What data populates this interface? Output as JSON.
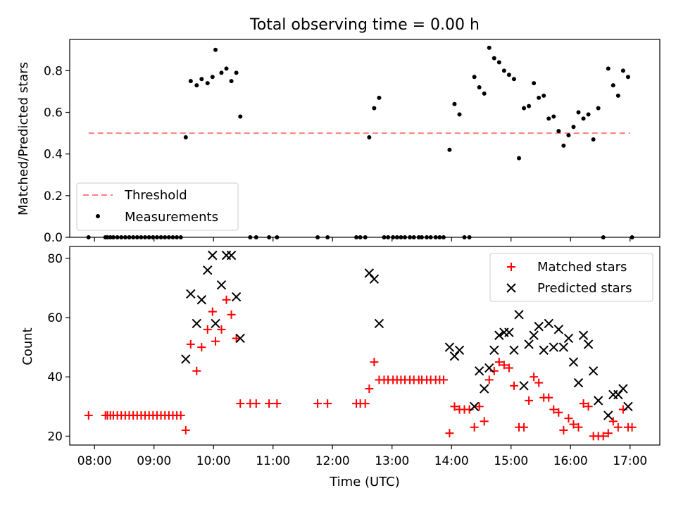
{
  "title": "Total observing time = 0.00 h",
  "chart_data": [
    {
      "type": "scatter",
      "ylabel": "Matched/Predicted stars",
      "xlim": [
        "07:35",
        "17:30"
      ],
      "ylim": [
        0,
        0.95
      ],
      "yticks": [
        0.0,
        0.2,
        0.4,
        0.6,
        0.8
      ],
      "ytick_labels": [
        "0.0",
        "0.2",
        "0.4",
        "0.6",
        "0.8"
      ],
      "legend_position": "lower-left",
      "threshold": {
        "name": "Threshold",
        "value": 0.5,
        "x_range": [
          "07:54",
          "17:00"
        ],
        "color": "#ff7f7f"
      },
      "series": [
        {
          "name": "Measurements",
          "color": "#000000",
          "points": [
            [
              "07:54",
              0.0
            ],
            [
              "08:11",
              0.0
            ],
            [
              "08:13",
              0.0
            ],
            [
              "08:16",
              0.0
            ],
            [
              "08:19",
              0.0
            ],
            [
              "08:23",
              0.0
            ],
            [
              "08:27",
              0.0
            ],
            [
              "08:31",
              0.0
            ],
            [
              "08:35",
              0.0
            ],
            [
              "08:39",
              0.0
            ],
            [
              "08:43",
              0.0
            ],
            [
              "08:47",
              0.0
            ],
            [
              "08:51",
              0.0
            ],
            [
              "08:55",
              0.0
            ],
            [
              "08:59",
              0.0
            ],
            [
              "09:03",
              0.0
            ],
            [
              "09:07",
              0.0
            ],
            [
              "09:11",
              0.0
            ],
            [
              "09:15",
              0.0
            ],
            [
              "09:19",
              0.0
            ],
            [
              "09:23",
              0.0
            ],
            [
              "09:27",
              0.0
            ],
            [
              "09:32",
              0.48
            ],
            [
              "09:37",
              0.75
            ],
            [
              "09:43",
              0.73
            ],
            [
              "09:48",
              0.76
            ],
            [
              "09:54",
              0.74
            ],
            [
              "09:59",
              0.77
            ],
            [
              "10:02",
              0.9
            ],
            [
              "10:08",
              0.79
            ],
            [
              "10:13",
              0.81
            ],
            [
              "10:18",
              0.75
            ],
            [
              "10:23",
              0.79
            ],
            [
              "10:27",
              0.58
            ],
            [
              "10:37",
              0.0
            ],
            [
              "10:43",
              0.0
            ],
            [
              "10:56",
              0.0
            ],
            [
              "11:04",
              0.0
            ],
            [
              "11:45",
              0.0
            ],
            [
              "11:55",
              0.0
            ],
            [
              "12:24",
              0.0
            ],
            [
              "12:28",
              0.0
            ],
            [
              "12:33",
              0.0
            ],
            [
              "12:37",
              0.48
            ],
            [
              "12:42",
              0.62
            ],
            [
              "12:47",
              0.67
            ],
            [
              "12:52",
              0.0
            ],
            [
              "12:56",
              0.0
            ],
            [
              "13:01",
              0.0
            ],
            [
              "13:05",
              0.0
            ],
            [
              "13:09",
              0.0
            ],
            [
              "13:13",
              0.0
            ],
            [
              "13:18",
              0.0
            ],
            [
              "13:22",
              0.0
            ],
            [
              "13:27",
              0.0
            ],
            [
              "13:30",
              0.0
            ],
            [
              "13:35",
              0.0
            ],
            [
              "13:39",
              0.0
            ],
            [
              "13:44",
              0.0
            ],
            [
              "13:48",
              0.0
            ],
            [
              "13:52",
              0.0
            ],
            [
              "13:58",
              0.42
            ],
            [
              "14:03",
              0.64
            ],
            [
              "14:08",
              0.59
            ],
            [
              "14:13",
              0.0
            ],
            [
              "14:18",
              0.0
            ],
            [
              "14:23",
              0.77
            ],
            [
              "14:28",
              0.72
            ],
            [
              "14:33",
              0.69
            ],
            [
              "14:38",
              0.91
            ],
            [
              "14:43",
              0.86
            ],
            [
              "14:48",
              0.84
            ],
            [
              "14:53",
              0.8
            ],
            [
              "14:58",
              0.78
            ],
            [
              "15:03",
              0.76
            ],
            [
              "15:08",
              0.38
            ],
            [
              "15:13",
              0.62
            ],
            [
              "15:18",
              0.63
            ],
            [
              "15:23",
              0.74
            ],
            [
              "15:28",
              0.67
            ],
            [
              "15:33",
              0.68
            ],
            [
              "15:38",
              0.57
            ],
            [
              "15:43",
              0.58
            ],
            [
              "15:48",
              0.51
            ],
            [
              "15:53",
              0.44
            ],
            [
              "15:58",
              0.49
            ],
            [
              "16:03",
              0.53
            ],
            [
              "16:08",
              0.6
            ],
            [
              "16:13",
              0.57
            ],
            [
              "16:18",
              0.59
            ],
            [
              "16:23",
              0.47
            ],
            [
              "16:28",
              0.62
            ],
            [
              "16:33",
              0.0
            ],
            [
              "16:38",
              0.81
            ],
            [
              "16:43",
              0.73
            ],
            [
              "16:48",
              0.68
            ],
            [
              "16:53",
              0.8
            ],
            [
              "16:58",
              0.77
            ],
            [
              "17:02",
              0.0
            ]
          ]
        }
      ]
    },
    {
      "type": "scatter",
      "xlabel": "Time (UTC)",
      "ylabel": "Count",
      "xlim": [
        "07:35",
        "17:30"
      ],
      "ylim": [
        17,
        84
      ],
      "xticks": [
        "08:00",
        "09:00",
        "10:00",
        "11:00",
        "12:00",
        "13:00",
        "14:00",
        "15:00",
        "16:00",
        "17:00"
      ],
      "yticks": [
        20,
        40,
        60,
        80
      ],
      "ytick_labels": [
        "20",
        "40",
        "60",
        "80"
      ],
      "legend_position": "upper-right",
      "series": [
        {
          "name": "Matched stars",
          "marker": "+",
          "color": "#ff0000",
          "points": [
            [
              "07:54",
              27
            ],
            [
              "08:11",
              27
            ],
            [
              "08:13",
              27
            ],
            [
              "08:16",
              27
            ],
            [
              "08:19",
              27
            ],
            [
              "08:23",
              27
            ],
            [
              "08:27",
              27
            ],
            [
              "08:31",
              27
            ],
            [
              "08:35",
              27
            ],
            [
              "08:39",
              27
            ],
            [
              "08:43",
              27
            ],
            [
              "08:47",
              27
            ],
            [
              "08:51",
              27
            ],
            [
              "08:55",
              27
            ],
            [
              "08:59",
              27
            ],
            [
              "09:03",
              27
            ],
            [
              "09:07",
              27
            ],
            [
              "09:11",
              27
            ],
            [
              "09:15",
              27
            ],
            [
              "09:19",
              27
            ],
            [
              "09:23",
              27
            ],
            [
              "09:27",
              27
            ],
            [
              "09:32",
              22
            ],
            [
              "09:37",
              51
            ],
            [
              "09:43",
              42
            ],
            [
              "09:48",
              50
            ],
            [
              "09:54",
              56
            ],
            [
              "09:59",
              62
            ],
            [
              "10:02",
              52
            ],
            [
              "10:08",
              56
            ],
            [
              "10:13",
              66
            ],
            [
              "10:18",
              61
            ],
            [
              "10:23",
              53
            ],
            [
              "10:27",
              31
            ],
            [
              "10:37",
              31
            ],
            [
              "10:43",
              31
            ],
            [
              "10:56",
              31
            ],
            [
              "11:04",
              31
            ],
            [
              "11:45",
              31
            ],
            [
              "11:55",
              31
            ],
            [
              "12:24",
              31
            ],
            [
              "12:28",
              31
            ],
            [
              "12:33",
              31
            ],
            [
              "12:37",
              36
            ],
            [
              "12:42",
              45
            ],
            [
              "12:47",
              39
            ],
            [
              "12:52",
              39
            ],
            [
              "12:56",
              39
            ],
            [
              "13:01",
              39
            ],
            [
              "13:05",
              39
            ],
            [
              "13:09",
              39
            ],
            [
              "13:13",
              39
            ],
            [
              "13:18",
              39
            ],
            [
              "13:22",
              39
            ],
            [
              "13:27",
              39
            ],
            [
              "13:30",
              39
            ],
            [
              "13:35",
              39
            ],
            [
              "13:39",
              39
            ],
            [
              "13:44",
              39
            ],
            [
              "13:48",
              39
            ],
            [
              "13:52",
              39
            ],
            [
              "13:58",
              21
            ],
            [
              "14:03",
              30
            ],
            [
              "14:08",
              29
            ],
            [
              "14:13",
              29
            ],
            [
              "14:18",
              29
            ],
            [
              "14:23",
              23
            ],
            [
              "14:28",
              30
            ],
            [
              "14:33",
              25
            ],
            [
              "14:38",
              39
            ],
            [
              "14:43",
              42
            ],
            [
              "14:48",
              45
            ],
            [
              "14:53",
              44
            ],
            [
              "14:58",
              43
            ],
            [
              "15:03",
              37
            ],
            [
              "15:08",
              23
            ],
            [
              "15:13",
              23
            ],
            [
              "15:18",
              32
            ],
            [
              "15:23",
              40
            ],
            [
              "15:28",
              38
            ],
            [
              "15:33",
              33
            ],
            [
              "15:38",
              33
            ],
            [
              "15:43",
              29
            ],
            [
              "15:48",
              28
            ],
            [
              "15:53",
              22
            ],
            [
              "15:58",
              26
            ],
            [
              "16:03",
              24
            ],
            [
              "16:08",
              23
            ],
            [
              "16:13",
              31
            ],
            [
              "16:18",
              30
            ],
            [
              "16:23",
              20
            ],
            [
              "16:28",
              20
            ],
            [
              "16:33",
              20
            ],
            [
              "16:38",
              21
            ],
            [
              "16:43",
              25
            ],
            [
              "16:48",
              23
            ],
            [
              "16:53",
              29
            ],
            [
              "16:58",
              23
            ],
            [
              "17:02",
              23
            ]
          ]
        },
        {
          "name": "Predicted stars",
          "marker": "x",
          "color": "#000000",
          "points": [
            [
              "09:32",
              46
            ],
            [
              "09:37",
              68
            ],
            [
              "09:43",
              58
            ],
            [
              "09:48",
              66
            ],
            [
              "09:54",
              76
            ],
            [
              "09:59",
              81
            ],
            [
              "10:02",
              58
            ],
            [
              "10:08",
              71
            ],
            [
              "10:13",
              81
            ],
            [
              "10:18",
              81
            ],
            [
              "10:23",
              67
            ],
            [
              "10:27",
              53
            ],
            [
              "12:37",
              75
            ],
            [
              "12:42",
              73
            ],
            [
              "12:47",
              58
            ],
            [
              "13:58",
              50
            ],
            [
              "14:03",
              47
            ],
            [
              "14:08",
              49
            ],
            [
              "14:23",
              30
            ],
            [
              "14:28",
              42
            ],
            [
              "14:33",
              36
            ],
            [
              "14:38",
              43
            ],
            [
              "14:43",
              49
            ],
            [
              "14:48",
              54
            ],
            [
              "14:53",
              55
            ],
            [
              "14:58",
              55
            ],
            [
              "15:03",
              49
            ],
            [
              "15:08",
              61
            ],
            [
              "15:13",
              37
            ],
            [
              "15:18",
              51
            ],
            [
              "15:23",
              54
            ],
            [
              "15:28",
              57
            ],
            [
              "15:33",
              49
            ],
            [
              "15:38",
              58
            ],
            [
              "15:43",
              50
            ],
            [
              "15:48",
              56
            ],
            [
              "15:53",
              50
            ],
            [
              "15:58",
              53
            ],
            [
              "16:03",
              45
            ],
            [
              "16:08",
              38
            ],
            [
              "16:13",
              54
            ],
            [
              "16:18",
              51
            ],
            [
              "16:23",
              42
            ],
            [
              "16:28",
              32
            ],
            [
              "16:38",
              27
            ],
            [
              "16:43",
              34
            ],
            [
              "16:48",
              34
            ],
            [
              "16:53",
              36
            ],
            [
              "16:58",
              30
            ]
          ]
        }
      ]
    }
  ]
}
